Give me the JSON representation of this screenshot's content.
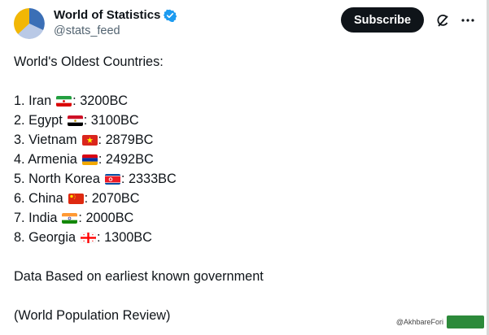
{
  "account": {
    "display_name": "World of Statistics",
    "handle": "@stats_feed",
    "verified_icon": "verified-badge-icon",
    "avatar_colors": [
      "#f2b705",
      "#3b6fb6",
      "#b9c9e6"
    ]
  },
  "actions": {
    "subscribe_label": "Subscribe",
    "grok_icon": "grok-icon",
    "more_icon": "more-icon"
  },
  "post": {
    "title": "World's Oldest Countries:",
    "items": [
      {
        "prefix": "1. Iran",
        "suffix": ": 3200BC",
        "flag": "iran-flag-icon"
      },
      {
        "prefix": "2. Egypt",
        "suffix": ": 3100BC",
        "flag": "egypt-flag-icon"
      },
      {
        "prefix": "3. Vietnam",
        "suffix": ": 2879BC",
        "flag": "vietnam-flag-icon"
      },
      {
        "prefix": "4. Armenia",
        "suffix": ": 2492BC",
        "flag": "armenia-flag-icon"
      },
      {
        "prefix": "5. North Korea",
        "suffix": ": 2333BC",
        "flag": "north-korea-flag-icon"
      },
      {
        "prefix": "6. China",
        "suffix": ": 2070BC",
        "flag": "china-flag-icon"
      },
      {
        "prefix": "7. India",
        "suffix": ": 2000BC",
        "flag": "india-flag-icon"
      },
      {
        "prefix": "8. Georgia",
        "suffix": ": 1300BC",
        "flag": "georgia-flag-icon"
      }
    ],
    "note": "Data Based on earliest known government",
    "source": "(World Population Review)"
  },
  "watermark": {
    "text": "@AkhbareFori"
  }
}
